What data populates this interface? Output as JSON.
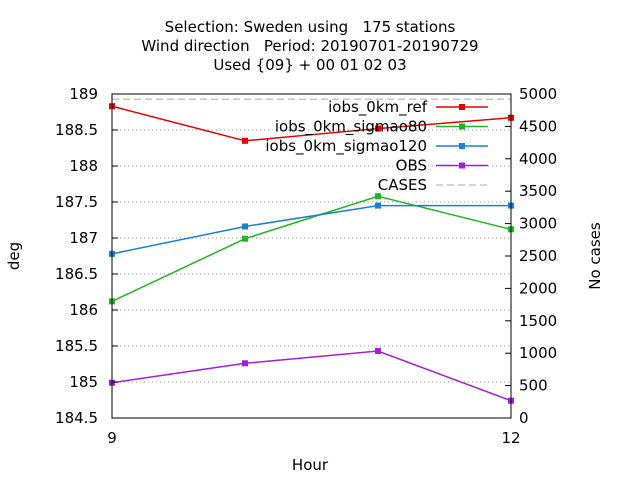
{
  "chart_data": {
    "type": "line",
    "title_lines": [
      "Selection: Sweden using   175 stations",
      "Wind direction   Period: 20190701-20190729",
      "Used {09} + 00 01 02 03"
    ],
    "xlabel": "Hour",
    "ylabel": "deg",
    "y2label": "No cases",
    "xlim": [
      9,
      12
    ],
    "ylim": [
      184.5,
      189
    ],
    "y2lim": [
      0,
      5000
    ],
    "x_ticks": [
      9,
      12
    ],
    "y_ticks": [
      "184.5",
      "185",
      "185.5",
      "186",
      "186.5",
      "187",
      "187.5",
      "188",
      "188.5",
      "189"
    ],
    "y2_ticks": [
      "0",
      "500",
      "1000",
      "1500",
      "2000",
      "2500",
      "3000",
      "3500",
      "4000",
      "4500",
      "5000"
    ],
    "grid": true,
    "legend_position": "top-right",
    "x": [
      9,
      10,
      11,
      12
    ],
    "series": [
      {
        "name": "iobs_0km_ref",
        "color": "#e00000",
        "axis": "y",
        "values": [
          188.83,
          188.35,
          188.52,
          188.67
        ]
      },
      {
        "name": "iobs_0km_sigmao80",
        "color": "#22b422",
        "axis": "y",
        "values": [
          186.12,
          186.99,
          187.58,
          187.12
        ]
      },
      {
        "name": "iobs_0km_sigmao120",
        "color": "#1a7fd6",
        "axis": "y",
        "values": [
          186.78,
          187.16,
          187.45,
          187.45
        ]
      },
      {
        "name": "OBS",
        "color": "#a01fdf",
        "axis": "y",
        "values": [
          184.99,
          185.26,
          185.43,
          184.74
        ]
      },
      {
        "name": "CASES",
        "color": "#a8a8a8",
        "axis": "y2",
        "dashed": true,
        "values": [
          4920,
          4920,
          4920,
          4920
        ]
      }
    ]
  }
}
